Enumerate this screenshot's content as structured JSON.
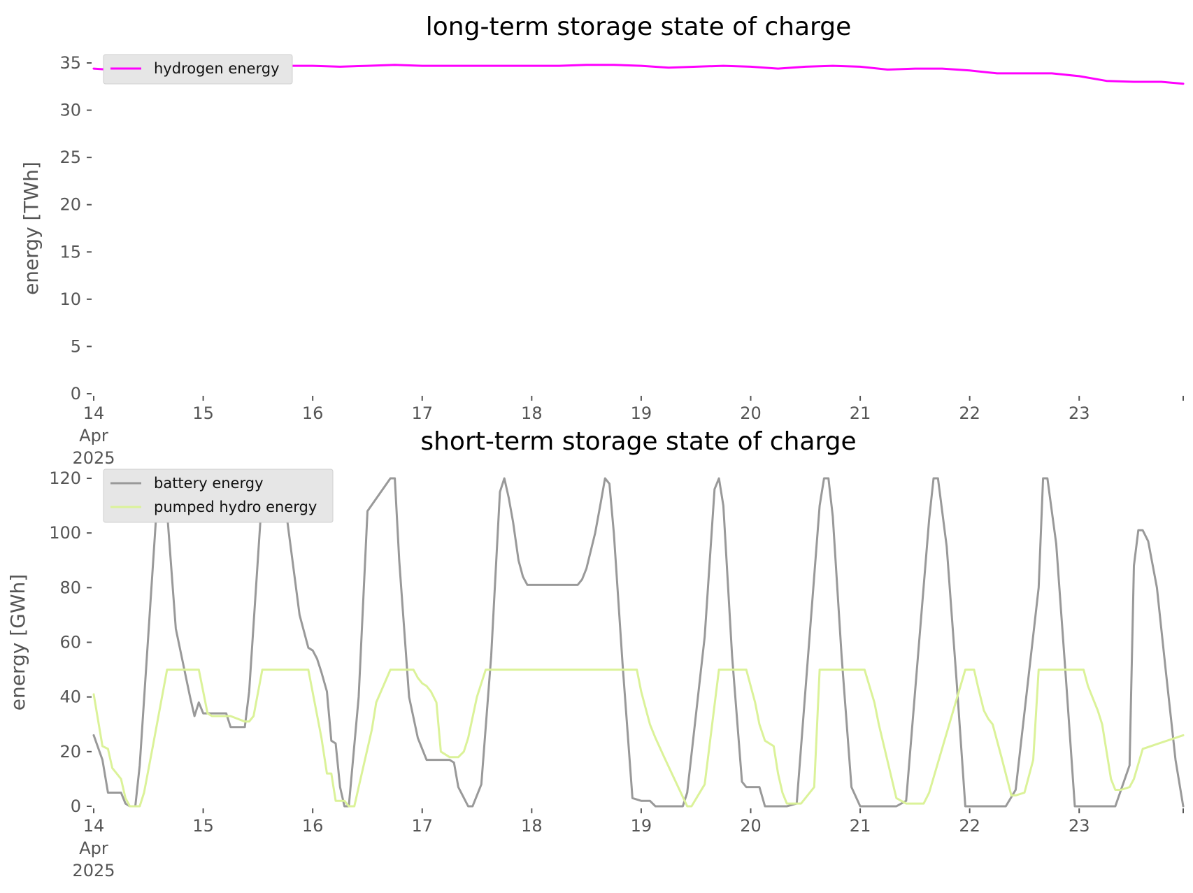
{
  "chart_data": [
    {
      "type": "line",
      "title": "long-term storage state of charge",
      "ylabel": "energy [TWh]",
      "xlabel": "",
      "ylim": [
        0,
        35
      ],
      "yticks": [
        "0",
        "5",
        "10",
        "15",
        "20",
        "25",
        "30",
        "35"
      ],
      "xlim": [
        0,
        9.95
      ],
      "xticks": [
        {
          "x": 0,
          "lines": [
            "14",
            "Apr",
            "2025"
          ]
        },
        {
          "x": 1,
          "lines": [
            "15"
          ]
        },
        {
          "x": 2,
          "lines": [
            "16"
          ]
        },
        {
          "x": 3,
          "lines": [
            "17"
          ]
        },
        {
          "x": 4,
          "lines": [
            "18"
          ]
        },
        {
          "x": 5,
          "lines": [
            "19"
          ]
        },
        {
          "x": 6,
          "lines": [
            "20"
          ]
        },
        {
          "x": 7,
          "lines": [
            "21"
          ]
        },
        {
          "x": 8,
          "lines": [
            "22"
          ]
        },
        {
          "x": 9,
          "lines": [
            "23"
          ]
        },
        {
          "x": 9.95,
          "lines": [
            ""
          ]
        }
      ],
      "grid": false,
      "legend_position": "upper-left",
      "series": [
        {
          "name": "hydrogen energy",
          "color": "#ff00ff",
          "width": 3,
          "x": [
            0,
            0.25,
            0.5,
            0.75,
            1.0,
            1.25,
            1.5,
            1.75,
            2.0,
            2.25,
            2.5,
            2.75,
            3.0,
            3.25,
            3.5,
            3.75,
            4.0,
            4.25,
            4.5,
            4.75,
            5.0,
            5.25,
            5.5,
            5.75,
            6.0,
            6.25,
            6.5,
            6.75,
            7.0,
            7.25,
            7.5,
            7.75,
            8.0,
            8.25,
            8.5,
            8.75,
            9.0,
            9.25,
            9.5,
            9.75,
            9.95
          ],
          "y": [
            34.4,
            34.2,
            34.2,
            34.2,
            34.3,
            34.4,
            34.6,
            34.7,
            34.7,
            34.6,
            34.7,
            34.8,
            34.7,
            34.7,
            34.7,
            34.7,
            34.7,
            34.7,
            34.8,
            34.8,
            34.7,
            34.5,
            34.6,
            34.7,
            34.6,
            34.4,
            34.6,
            34.7,
            34.6,
            34.3,
            34.4,
            34.4,
            34.2,
            33.9,
            33.9,
            33.9,
            33.6,
            33.1,
            33.0,
            33.0,
            32.8
          ]
        }
      ]
    },
    {
      "type": "line",
      "title": "short-term storage state of charge",
      "ylabel": "energy [GWh]",
      "xlabel": "",
      "ylim": [
        0,
        120
      ],
      "yticks": [
        "0",
        "20",
        "40",
        "60",
        "80",
        "100",
        "120"
      ],
      "xlim": [
        0,
        9.95
      ],
      "xticks": [
        {
          "x": 0,
          "lines": [
            "14",
            "Apr",
            "2025"
          ]
        },
        {
          "x": 1,
          "lines": [
            "15"
          ]
        },
        {
          "x": 2,
          "lines": [
            "16"
          ]
        },
        {
          "x": 3,
          "lines": [
            "17"
          ]
        },
        {
          "x": 4,
          "lines": [
            "18"
          ]
        },
        {
          "x": 5,
          "lines": [
            "19"
          ]
        },
        {
          "x": 6,
          "lines": [
            "20"
          ]
        },
        {
          "x": 7,
          "lines": [
            "21"
          ]
        },
        {
          "x": 8,
          "lines": [
            "22"
          ]
        },
        {
          "x": 9,
          "lines": [
            "23"
          ]
        },
        {
          "x": 9.95,
          "lines": [
            ""
          ]
        }
      ],
      "grid": false,
      "legend_position": "upper-left",
      "series": [
        {
          "name": "battery energy",
          "color": "#999999",
          "width": 3,
          "x": [
            0,
            0.08,
            0.13,
            0.25,
            0.29,
            0.33,
            0.38,
            0.42,
            0.58,
            0.63,
            0.67,
            0.75,
            0.88,
            0.92,
            0.96,
            1.0,
            1.08,
            1.21,
            1.25,
            1.38,
            1.42,
            1.54,
            1.58,
            1.71,
            1.75,
            1.88,
            1.96,
            2.0,
            2.04,
            2.08,
            2.13,
            2.17,
            2.21,
            2.25,
            2.29,
            2.33,
            2.42,
            2.5,
            2.71,
            2.75,
            2.79,
            2.88,
            2.96,
            3.04,
            3.08,
            3.13,
            3.25,
            3.29,
            3.33,
            3.42,
            3.46,
            3.54,
            3.63,
            3.71,
            3.75,
            3.79,
            3.83,
            3.88,
            3.92,
            3.96,
            4.0,
            4.13,
            4.25,
            4.38,
            4.42,
            4.46,
            4.5,
            4.58,
            4.63,
            4.67,
            4.71,
            4.75,
            4.83,
            4.92,
            5.0,
            5.08,
            5.13,
            5.17,
            5.25,
            5.38,
            5.42,
            5.58,
            5.67,
            5.71,
            5.75,
            5.83,
            5.92,
            5.96,
            6.0,
            6.08,
            6.13,
            6.25,
            6.29,
            6.33,
            6.42,
            6.63,
            6.67,
            6.71,
            6.75,
            6.83,
            6.92,
            7.0,
            7.25,
            7.29,
            7.33,
            7.42,
            7.63,
            7.67,
            7.71,
            7.79,
            7.88,
            7.96,
            8.0,
            8.25,
            8.29,
            8.33,
            8.42,
            8.63,
            8.67,
            8.71,
            8.79,
            8.88,
            8.96,
            9.0,
            9.25,
            9.29,
            9.33,
            9.46,
            9.5,
            9.54,
            9.58,
            9.63,
            9.71,
            9.79,
            9.88,
            9.95
          ],
          "y": [
            26,
            17,
            5,
            5,
            1,
            0,
            0,
            15,
            112,
            120,
            108,
            65,
            40,
            33,
            38,
            34,
            34,
            34,
            29,
            29,
            42,
            115,
            120,
            120,
            110,
            70,
            58,
            57,
            54,
            49,
            42,
            24,
            23,
            7,
            0,
            0,
            40,
            108,
            120,
            120,
            90,
            40,
            25,
            17,
            17,
            17,
            17,
            16,
            7,
            0,
            0,
            8,
            55,
            115,
            120,
            113,
            104,
            90,
            84,
            81,
            81,
            81,
            81,
            81,
            81,
            83,
            87,
            100,
            111,
            120,
            118,
            100,
            52,
            3,
            2,
            2,
            0,
            0,
            0,
            0,
            5,
            62,
            116,
            120,
            110,
            55,
            9,
            7,
            7,
            7,
            0,
            0,
            0,
            0,
            1,
            110,
            120,
            120,
            106,
            55,
            7,
            0,
            0,
            0,
            0,
            2,
            105,
            120,
            120,
            95,
            46,
            0,
            0,
            0,
            0,
            0,
            6,
            80,
            120,
            120,
            96,
            46,
            0,
            0,
            0,
            0,
            0,
            15,
            88,
            101,
            101,
            97,
            80,
            50,
            17,
            0
          ]
        },
        {
          "name": "pumped hydro energy",
          "color": "#dbf299",
          "width": 3,
          "x": [
            0,
            0.08,
            0.13,
            0.17,
            0.25,
            0.29,
            0.33,
            0.42,
            0.46,
            0.54,
            0.67,
            0.96,
            1.0,
            1.04,
            1.08,
            1.25,
            1.38,
            1.42,
            1.46,
            1.54,
            1.96,
            2.08,
            2.13,
            2.17,
            2.21,
            2.29,
            2.33,
            2.38,
            2.42,
            2.54,
            2.58,
            2.71,
            2.92,
            2.96,
            3.0,
            3.04,
            3.08,
            3.13,
            3.17,
            3.25,
            3.33,
            3.38,
            3.42,
            3.5,
            3.58,
            3.63,
            4.0,
            4.38,
            4.83,
            4.96,
            5.0,
            5.08,
            5.13,
            5.21,
            5.42,
            5.46,
            5.58,
            5.71,
            5.96,
            6.04,
            6.08,
            6.13,
            6.21,
            6.25,
            6.29,
            6.33,
            6.46,
            6.58,
            6.63,
            6.96,
            7.04,
            7.13,
            7.17,
            7.33,
            7.42,
            7.58,
            7.63,
            7.96,
            8.04,
            8.08,
            8.13,
            8.17,
            8.21,
            8.29,
            8.38,
            8.42,
            8.5,
            8.58,
            8.63,
            8.96,
            9.0,
            9.04,
            9.08,
            9.13,
            9.17,
            9.21,
            9.25,
            9.29,
            9.33,
            9.38,
            9.46,
            9.5,
            9.58,
            9.95
          ],
          "y": [
            41,
            22,
            21,
            14,
            10,
            3,
            0,
            0,
            5,
            22,
            50,
            50,
            42,
            34,
            33,
            33,
            31,
            31,
            33,
            50,
            50,
            25,
            12,
            12,
            2,
            2,
            0,
            0,
            7,
            28,
            38,
            50,
            50,
            47,
            45,
            44,
            42,
            38,
            20,
            18,
            18,
            20,
            25,
            40,
            50,
            50,
            50,
            50,
            50,
            50,
            42,
            30,
            25,
            18,
            0,
            0,
            8,
            50,
            50,
            38,
            30,
            24,
            22,
            12,
            5,
            1,
            1,
            7,
            50,
            50,
            50,
            38,
            30,
            3,
            1,
            1,
            5,
            50,
            50,
            43,
            35,
            32,
            30,
            18,
            4,
            4,
            5,
            17,
            50,
            50,
            50,
            50,
            44,
            39,
            35,
            30,
            20,
            10,
            6,
            6,
            7,
            10,
            21,
            26
          ]
        }
      ]
    }
  ]
}
